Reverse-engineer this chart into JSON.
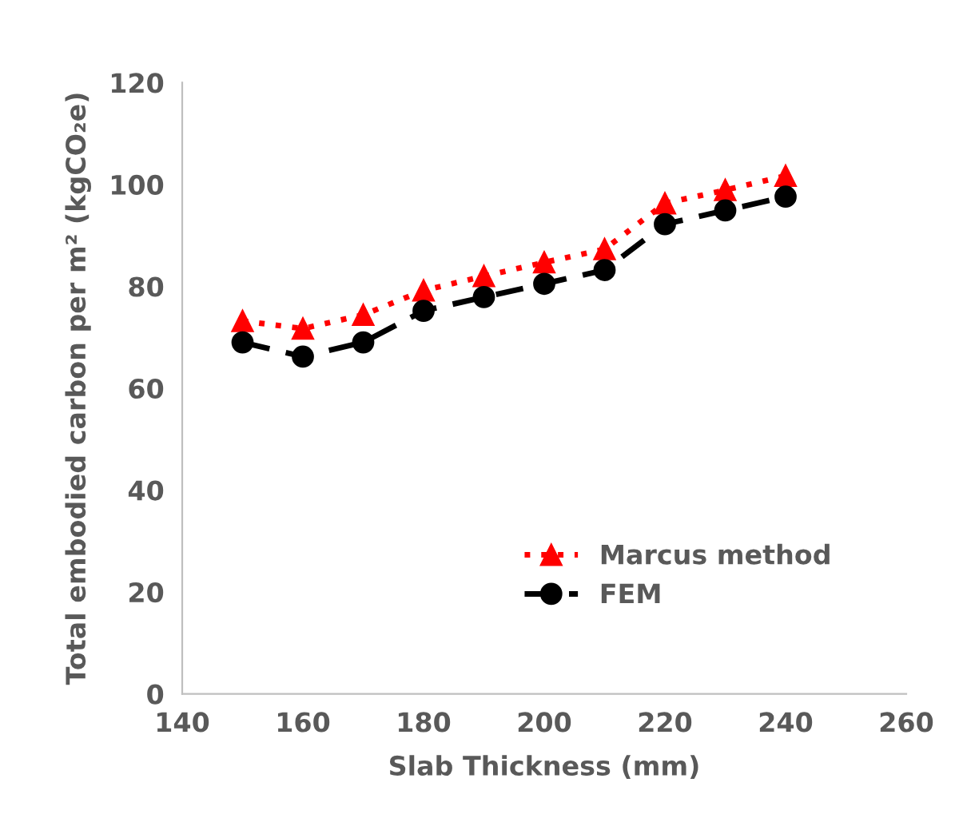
{
  "chart_data": {
    "type": "line",
    "xlabel": "Slab Thickness (mm)",
    "ylabel": "Total embodied carbon per m² (kgCO₂e)",
    "x": [
      150,
      160,
      170,
      180,
      190,
      200,
      210,
      220,
      230,
      240
    ],
    "series": [
      {
        "name": "Marcus method",
        "color": "#ff0000",
        "marker": "triangle",
        "line_style": "dotted",
        "values": [
          73.2,
          71.7,
          74.4,
          79.2,
          82.0,
          84.7,
          87.3,
          96.3,
          98.9,
          101.7
        ]
      },
      {
        "name": "FEM",
        "color": "#000000",
        "marker": "circle",
        "line_style": "dashed",
        "values": [
          69.0,
          66.2,
          69.0,
          75.2,
          77.9,
          80.5,
          83.2,
          92.2,
          94.9,
          97.6
        ]
      }
    ],
    "xlim": [
      140,
      260
    ],
    "xticks": [
      140,
      160,
      180,
      200,
      220,
      240,
      260
    ],
    "ylim": [
      0,
      120
    ],
    "yticks": [
      0,
      20,
      40,
      60,
      80,
      100,
      120
    ],
    "grid": false,
    "legend": "bottom right"
  }
}
